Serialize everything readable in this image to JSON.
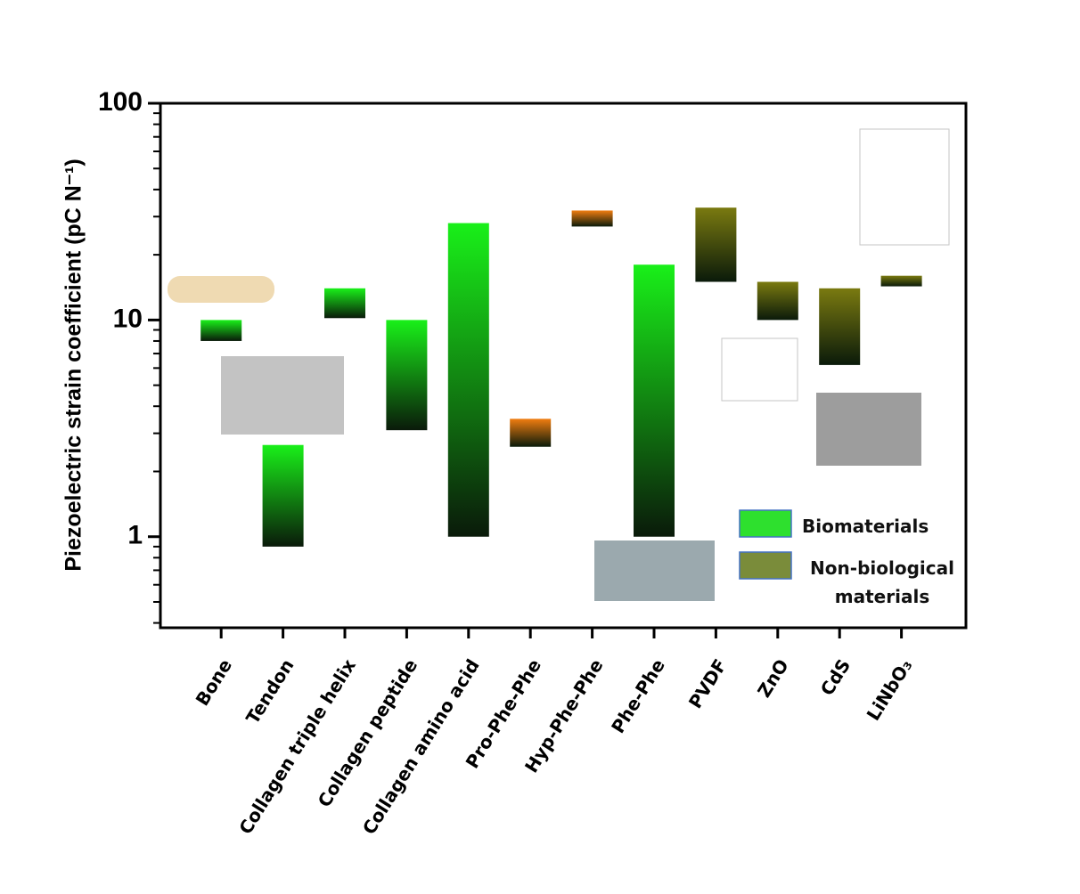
{
  "chart_data": {
    "type": "floating-bar",
    "y_label": "Piezoelectric strain coefficient (pC N⁻¹)",
    "categories": [
      "Bone",
      "Tendon",
      "Collagen triple helix",
      "Collagen peptide",
      "Collagen amino acid",
      "Pro-Phe-Phe",
      "Hyp-Phe-Phe",
      "Phe-Phe",
      "PVDF",
      "ZnO",
      "CdS",
      "LiNbO₃"
    ],
    "log_y": true,
    "ylim": [
      0.38,
      100
    ],
    "yticks": [
      1,
      10,
      100
    ],
    "yminorticks": [
      0.4,
      0.5,
      0.6,
      0.7,
      0.8,
      0.9,
      2,
      3,
      4,
      5,
      6,
      7,
      8,
      9,
      20,
      30,
      40,
      50,
      60,
      70,
      80,
      90
    ],
    "series": [
      {
        "name": "Biomaterials",
        "color": "#2ee02e",
        "bar_colors": [
          "#19f019",
          "#19f019",
          "#19f019",
          "#19f019",
          "#19f019",
          "#f07d10",
          "#f07d10",
          "#19f019",
          null,
          null,
          null,
          null
        ],
        "low": [
          8,
          0.9,
          10.2,
          3.1,
          1,
          2.6,
          27,
          1,
          null,
          null,
          null,
          null
        ],
        "high": [
          10,
          2.65,
          14,
          10,
          28,
          3.5,
          32,
          18,
          null,
          null,
          null,
          null
        ]
      },
      {
        "name": "Non-biological materials",
        "color": "#7a8c3a",
        "bar_colors": [
          null,
          null,
          null,
          null,
          null,
          null,
          null,
          null,
          "#7a7a10",
          "#7a7a10",
          "#7a7a10",
          "#7a7a10"
        ],
        "low": [
          null,
          null,
          null,
          null,
          null,
          null,
          null,
          null,
          15,
          10,
          6.2,
          14.3
        ],
        "high": [
          null,
          null,
          null,
          null,
          null,
          null,
          null,
          null,
          33,
          15,
          14,
          16
        ]
      }
    ],
    "legend": "lower-right"
  }
}
